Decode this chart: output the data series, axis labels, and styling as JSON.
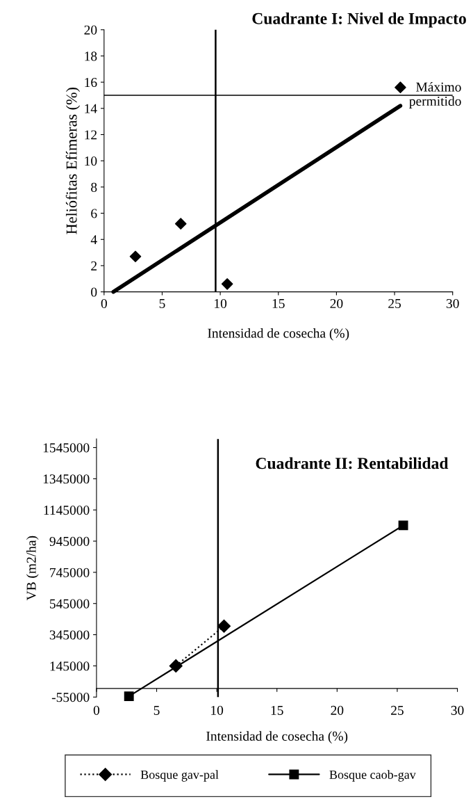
{
  "chart_data": [
    {
      "type": "scatter",
      "title": "Cuadrante I: Nivel de Impacto",
      "xlabel": "Intensidad de cosecha (%)",
      "ylabel": "Heliófitas Efímeras (%)",
      "xlim": [
        0,
        30
      ],
      "xticks": [
        0,
        5,
        10,
        15,
        20,
        25,
        30
      ],
      "ylim": [
        0,
        20
      ],
      "yticks": [
        0,
        2,
        4,
        6,
        8,
        10,
        12,
        14,
        16,
        18,
        20
      ],
      "grid": false,
      "legend": false,
      "series": [
        {
          "type": "scatter",
          "color": "#000000",
          "marker": "diamond",
          "x": [
            2.7,
            6.6,
            10.6,
            25.5
          ],
          "values": [
            2.7,
            5.2,
            0.6,
            15.6
          ]
        },
        {
          "type": "line",
          "color": "#000000",
          "marker": "none",
          "line_style": "solid",
          "x": [
            0.8,
            25.5
          ],
          "values": [
            0,
            14.2
          ]
        }
      ],
      "ref_lines": [
        {
          "axis": "y",
          "value": 15,
          "color": "#000000"
        },
        {
          "axis": "x",
          "value": 9.6,
          "color": "#000000"
        }
      ],
      "annotations": [
        {
          "text": "Máximo\npermitido",
          "x": 28.5,
          "y": 15
        }
      ]
    },
    {
      "type": "line",
      "title": "Cuadrante II: Rentabilidad",
      "xlabel": "Intensidad de cosecha (%)",
      "ylabel": "VB (m2/ha)",
      "xlim": [
        0,
        30
      ],
      "xticks": [
        0,
        5,
        10,
        15,
        20,
        25,
        30
      ],
      "ylim": [
        -55000,
        1600000
      ],
      "yticks": [
        -55000,
        145000,
        345000,
        545000,
        745000,
        945000,
        1145000,
        1345000,
        1545000
      ],
      "grid": false,
      "legend": "bottom",
      "series": [
        {
          "name": "Bosque gav-pal",
          "color": "#000000",
          "marker": "diamond",
          "line_style": "dotted",
          "x": [
            6.6,
            10.6
          ],
          "values": [
            145000,
            400000
          ]
        },
        {
          "name": "Bosque caob-gav",
          "color": "#000000",
          "marker": "square",
          "line_style": "solid",
          "x": [
            2.7,
            25.5
          ],
          "values": [
            -50000,
            1046000
          ]
        }
      ],
      "ref_lines": [
        {
          "axis": "x",
          "value": 10.1,
          "color": "#000000"
        }
      ]
    }
  ]
}
